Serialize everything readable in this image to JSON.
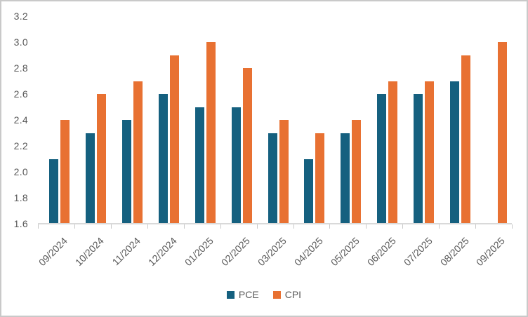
{
  "chart_data": {
    "type": "bar",
    "title": "",
    "xlabel": "",
    "ylabel": "",
    "categories": [
      "09/2024",
      "10/2024",
      "11/2024",
      "12/2024",
      "01/2025",
      "02/2025",
      "03/2025",
      "04/2025",
      "05/2025",
      "06/2025",
      "07/2025",
      "08/2025",
      "09/2025"
    ],
    "series": [
      {
        "name": "PCE",
        "color": "#15607f",
        "values": [
          2.1,
          2.3,
          2.4,
          2.6,
          2.5,
          2.5,
          2.3,
          2.1,
          2.3,
          2.6,
          2.6,
          2.7,
          null
        ]
      },
      {
        "name": "CPI",
        "color": "#e87132",
        "values": [
          2.4,
          2.6,
          2.7,
          2.9,
          3.0,
          2.8,
          2.4,
          2.3,
          2.4,
          2.7,
          2.7,
          2.9,
          3.0
        ]
      }
    ],
    "ylim": [
      1.6,
      3.2
    ],
    "ytick_step": 0.2,
    "ytick_labels": [
      "1.6",
      "1.8",
      "2.0",
      "2.2",
      "2.4",
      "2.6",
      "2.8",
      "3.0",
      "3.2"
    ],
    "grid": false,
    "legend_position": "bottom",
    "axis_color": "#d9d9d9",
    "text_color": "#595959"
  }
}
